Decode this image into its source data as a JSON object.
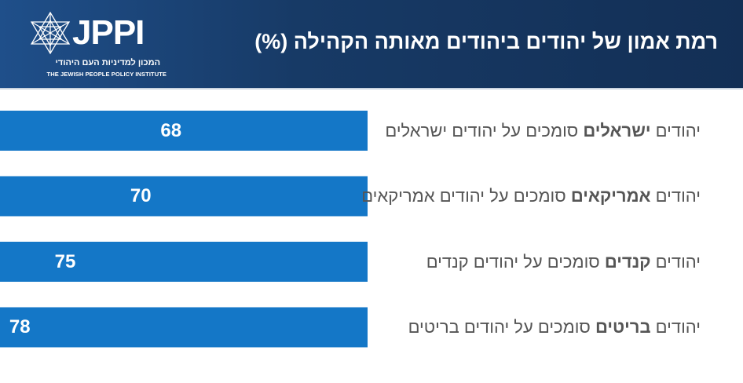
{
  "header": {
    "logo_text": "JPPI",
    "logo_hebrew": "המכון למדיניות העם היהודי",
    "logo_english": "THE JEWISH PEOPLE POLICY INSTITUTE",
    "title": "רמת  אמון של יהודים ביהודים מאותה הקהילה (%)"
  },
  "colors": {
    "header_bg": "#173a66",
    "bar": "#1477c7",
    "label_text": "#555555"
  },
  "chart_data": {
    "type": "bar",
    "orientation": "horizontal",
    "title": "רמת  אמון של יהודים ביהודים מאותה הקהילה (%)",
    "categories": [
      {
        "prefix": "יהודים ",
        "bold": "ישראלים",
        "suffix": " סומכים על יהודים ישראלים"
      },
      {
        "prefix": "יהודים ",
        "bold": "אמריקאים",
        "suffix": " סומכים על יהודים אמריקאים"
      },
      {
        "prefix": "יהודים ",
        "bold": "קנדים",
        "suffix": " סומכים על יהודים קנדים"
      },
      {
        "prefix": "יהודים ",
        "bold": "בריטים",
        "suffix": " סומכים על יהודים בריטים"
      }
    ],
    "values": [
      68,
      70,
      75,
      78
    ],
    "xlim": [
      55,
      80
    ],
    "grid": false,
    "legend": "none"
  }
}
